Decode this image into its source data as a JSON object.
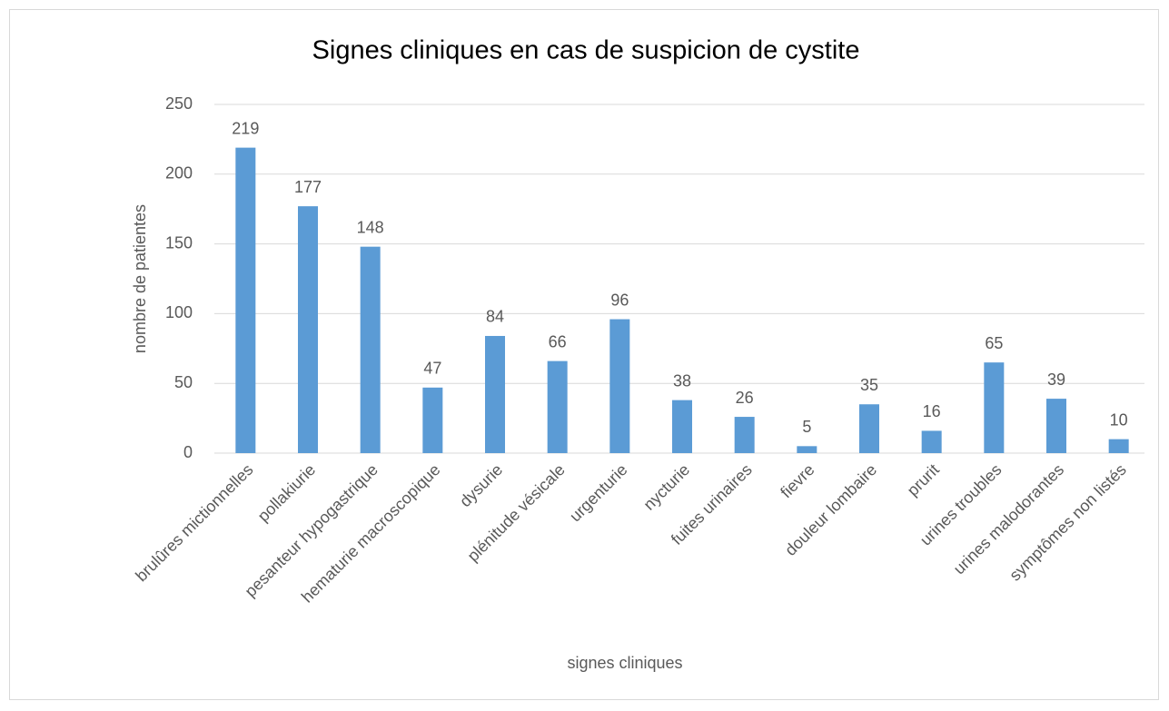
{
  "chart_data": {
    "type": "bar",
    "title": "Signes cliniques en cas de suspicion de cystite",
    "x_label": "signes cliniques",
    "y_label": "nombre de patientes",
    "categories": [
      "brulûres mictionnelles",
      "pollakiurie",
      "pesanteur hypogastrique",
      "hematurie macroscopique",
      "dysurie",
      "plénitude vésicale",
      "urgenturie",
      "nycturie",
      "fuites urinaires",
      "fievre",
      "douleur lombaire",
      "prurit",
      "urines troubles",
      "urines malodorantes",
      "symptômes non listés"
    ],
    "values": [
      219,
      177,
      148,
      47,
      84,
      66,
      96,
      38,
      26,
      5,
      35,
      16,
      65,
      39,
      10
    ],
    "color": "#5b9bd5",
    "ylim": [
      0,
      250
    ],
    "yticks": [
      0,
      50,
      100,
      150,
      200,
      250
    ],
    "grid": true
  }
}
